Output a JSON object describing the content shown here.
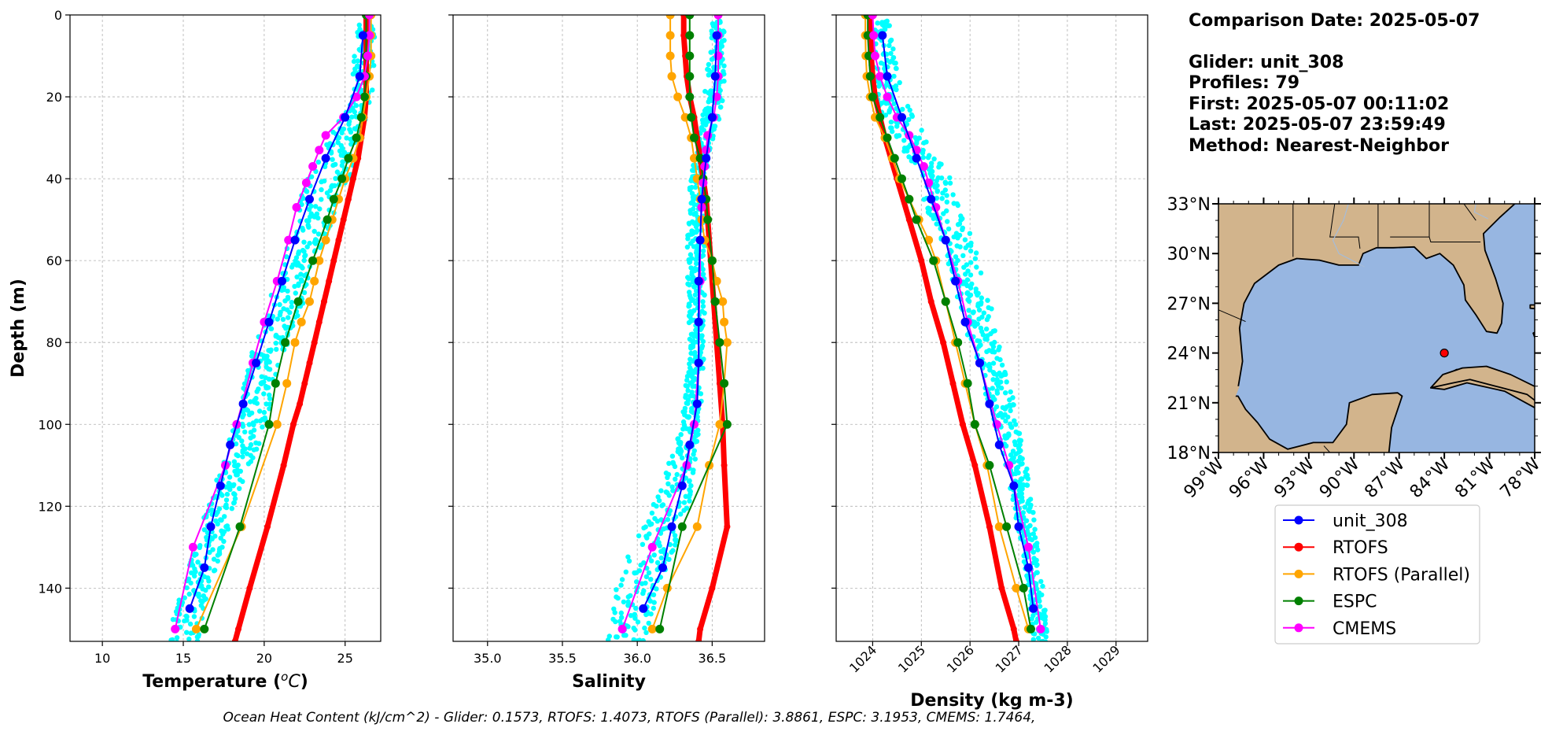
{
  "info": {
    "comparison_date": "Comparison Date: 2025-05-07",
    "glider": "Glider: unit_308",
    "profiles": "Profiles: 79",
    "first": "First: 2025-05-07 00:11:02",
    "last": "Last: 2025-05-07 23:59:49",
    "method": "Method: Nearest-Neighbor"
  },
  "footer": "Ocean Heat Content (kJ/cm^2) - Glider: 0.1573,  RTOFS: 1.4073,  RTOFS (Parallel): 3.8861,  ESPC: 3.1953,  CMEMS: 1.7464,",
  "colors": {
    "glider_obs": "#00ffff",
    "unit_308": "#0000ff",
    "RTOFS": "#ff0000",
    "RTOFS_parallel": "#ffa500",
    "ESPC": "#008000",
    "CMEMS": "#ff00ff",
    "ocean": "#97b6e1",
    "land": "#d2b48c",
    "grid": "#b0b0b0"
  },
  "legend": [
    "unit_308",
    "RTOFS",
    "RTOFS (Parallel)",
    "ESPC",
    "CMEMS"
  ],
  "map": {
    "lat_ticks": [
      "33°N",
      "30°N",
      "27°N",
      "24°N",
      "21°N",
      "18°N"
    ],
    "lon_ticks": [
      "99°W",
      "96°W",
      "93°W",
      "90°W",
      "87°W",
      "84°W",
      "81°W",
      "78°W"
    ],
    "xlim": [
      -99,
      -78
    ],
    "ylim": [
      18,
      33
    ],
    "glider_location": {
      "lon": -84.0,
      "lat": 24.0
    },
    "ocean_color": "#97b6e1",
    "land_color": "#d2b48c"
  },
  "chart_data": [
    {
      "type": "line",
      "xlabel": "Temperature (°C)",
      "ylabel": "Depth (m)",
      "xlim": [
        8,
        27.2
      ],
      "ylim": [
        153,
        0
      ],
      "xticks": [
        10,
        15,
        20,
        25
      ],
      "yticks": [
        0,
        20,
        40,
        60,
        80,
        100,
        120,
        140
      ],
      "grid": true,
      "glider_scatter": {
        "depth": [
          0,
          20,
          40,
          60,
          80,
          100,
          120,
          140,
          153
        ],
        "min": [
          25.7,
          25.4,
          22.6,
          21.2,
          19.4,
          18.2,
          16.5,
          14.9,
          14.0
        ],
        "max": [
          26.9,
          26.7,
          25.3,
          23.3,
          21.5,
          20.1,
          18.2,
          16.7,
          15.9
        ]
      },
      "series": [
        {
          "name": "unit_308",
          "depth": [
            5,
            15,
            25,
            35,
            45,
            55,
            65,
            75,
            85,
            95,
            105,
            115,
            125,
            135,
            145
          ],
          "values": [
            26.1,
            25.9,
            25.0,
            23.8,
            22.8,
            21.9,
            21.1,
            20.3,
            19.5,
            18.7,
            17.9,
            17.3,
            16.7,
            16.3,
            15.4
          ]
        },
        {
          "name": "RTOFS",
          "depth": [
            0,
            5,
            10,
            15,
            20,
            25,
            30,
            35,
            40,
            45,
            50,
            55,
            60,
            65,
            70,
            75,
            80,
            85,
            90,
            95,
            100,
            110,
            125,
            140,
            150,
            153
          ],
          "values": [
            26.3,
            26.3,
            26.3,
            26.3,
            26.3,
            26.2,
            26.0,
            25.8,
            25.5,
            25.2,
            24.9,
            24.6,
            24.3,
            24.0,
            23.7,
            23.4,
            23.1,
            22.8,
            22.5,
            22.2,
            21.8,
            21.2,
            20.2,
            19.1,
            18.4,
            18.2
          ]
        },
        {
          "name": "RTOFS (Parallel)",
          "depth": [
            0,
            5,
            10,
            15,
            20,
            25,
            30,
            35,
            40,
            45,
            50,
            55,
            60,
            65,
            70,
            75,
            80,
            90,
            100,
            125,
            150
          ],
          "values": [
            26.6,
            26.6,
            26.6,
            26.5,
            26.3,
            26.1,
            25.9,
            25.5,
            25.0,
            24.6,
            24.2,
            23.8,
            23.4,
            23.1,
            22.8,
            22.3,
            21.9,
            21.4,
            20.8,
            18.6,
            15.8
          ]
        },
        {
          "name": "ESPC",
          "depth": [
            0,
            5,
            10,
            15,
            20,
            25,
            30,
            35,
            40,
            45,
            50,
            60,
            70,
            80,
            90,
            100,
            125,
            150
          ],
          "values": [
            26.3,
            26.3,
            26.3,
            26.3,
            26.2,
            26.0,
            25.7,
            25.2,
            24.8,
            24.3,
            23.9,
            23.0,
            22.1,
            21.3,
            20.7,
            20.3,
            18.5,
            16.3
          ]
        },
        {
          "name": "CMEMS",
          "depth": [
            0,
            5,
            10,
            15,
            20,
            25,
            29.4,
            33,
            37,
            41,
            47,
            55,
            65,
            75,
            85,
            100,
            110,
            130,
            150
          ],
          "values": [
            26.5,
            26.5,
            26.4,
            26.2,
            25.7,
            24.9,
            23.8,
            23.4,
            23.0,
            22.6,
            22.0,
            21.5,
            20.8,
            20.0,
            19.3,
            18.3,
            17.6,
            15.6,
            14.5
          ]
        }
      ]
    },
    {
      "type": "line",
      "xlabel": "Salinity",
      "ylabel": "",
      "xlim": [
        34.77,
        36.85
      ],
      "ylim": [
        153,
        0
      ],
      "xticks": [
        35.0,
        35.5,
        36.0,
        36.5
      ],
      "yticks": [
        0,
        20,
        40,
        60,
        80,
        100,
        120,
        140
      ],
      "grid": true,
      "glider_scatter": {
        "depth": [
          0,
          20,
          40,
          60,
          80,
          100,
          120,
          130,
          140,
          153
        ],
        "min": [
          36.5,
          36.45,
          36.35,
          36.33,
          36.35,
          36.3,
          36.1,
          35.95,
          35.85,
          35.8
        ],
        "max": [
          36.58,
          36.58,
          36.45,
          36.45,
          36.45,
          36.42,
          36.35,
          36.25,
          36.15,
          36.05
        ]
      },
      "series": [
        {
          "name": "unit_308",
          "depth": [
            5,
            15,
            25,
            35,
            45,
            55,
            65,
            75,
            85,
            95,
            105,
            115,
            125,
            135,
            145
          ],
          "values": [
            36.53,
            36.52,
            36.5,
            36.46,
            36.43,
            36.42,
            36.41,
            36.41,
            36.41,
            36.4,
            36.35,
            36.3,
            36.23,
            36.17,
            36.04
          ]
        },
        {
          "name": "RTOFS",
          "depth": [
            0,
            5,
            10,
            15,
            20,
            25,
            30,
            35,
            40,
            45,
            50,
            60,
            70,
            80,
            90,
            100,
            110,
            125,
            140,
            150,
            153
          ],
          "values": [
            36.31,
            36.31,
            36.32,
            36.33,
            36.35,
            36.38,
            36.4,
            36.42,
            36.44,
            36.46,
            36.47,
            36.49,
            36.51,
            36.53,
            36.55,
            36.57,
            36.58,
            36.6,
            36.5,
            36.42,
            36.41
          ]
        },
        {
          "name": "RTOFS (Parallel)",
          "depth": [
            0,
            5,
            10,
            15,
            20,
            25,
            30,
            35,
            40,
            45,
            50,
            55,
            60,
            65,
            70,
            75,
            80,
            90,
            100,
            110,
            125,
            140,
            150
          ],
          "values": [
            36.22,
            36.22,
            36.22,
            36.23,
            36.27,
            36.32,
            36.36,
            36.38,
            36.4,
            36.42,
            36.43,
            36.45,
            36.5,
            36.53,
            36.57,
            36.58,
            36.6,
            36.58,
            36.55,
            36.48,
            36.4,
            36.2,
            36.1
          ]
        },
        {
          "name": "ESPC",
          "depth": [
            0,
            5,
            10,
            15,
            20,
            25,
            30,
            35,
            40,
            45,
            50,
            60,
            70,
            80,
            90,
            100,
            125,
            150
          ],
          "values": [
            36.35,
            36.35,
            36.35,
            36.35,
            36.35,
            36.36,
            36.38,
            36.42,
            36.44,
            36.46,
            36.47,
            36.5,
            36.52,
            36.55,
            36.58,
            36.6,
            36.3,
            36.15
          ]
        },
        {
          "name": "CMEMS",
          "depth": [
            0,
            5,
            10,
            15,
            20,
            25,
            29.4,
            33,
            37,
            41,
            47,
            55,
            65,
            75,
            85,
            100,
            110,
            130,
            150
          ],
          "values": [
            36.54,
            36.54,
            36.54,
            36.54,
            36.53,
            36.51,
            36.47,
            36.46,
            36.45,
            36.44,
            36.43,
            36.42,
            36.42,
            36.41,
            36.41,
            36.38,
            36.33,
            36.1,
            35.9
          ]
        }
      ]
    },
    {
      "type": "line",
      "xlabel": "Density (kg m-3)",
      "ylabel": "",
      "xlim": [
        1023.25,
        1029.65
      ],
      "ylim": [
        153,
        0
      ],
      "xticks": [
        1024,
        1025,
        1026,
        1027,
        1028,
        1029
      ],
      "yticks": [
        0,
        20,
        40,
        60,
        80,
        100,
        120,
        140
      ],
      "grid": true,
      "glider_scatter": {
        "depth": [
          0,
          20,
          40,
          60,
          80,
          100,
          120,
          140,
          153
        ],
        "min": [
          1023.9,
          1024.0,
          1024.9,
          1025.5,
          1026.0,
          1026.5,
          1026.9,
          1027.2,
          1027.3
        ],
        "max": [
          1024.3,
          1024.6,
          1025.6,
          1026.2,
          1026.6,
          1027.0,
          1027.3,
          1027.5,
          1027.6
        ]
      },
      "series": [
        {
          "name": "unit_308",
          "depth": [
            5,
            15,
            25,
            35,
            45,
            55,
            65,
            75,
            85,
            95,
            105,
            115,
            125,
            135,
            145
          ],
          "values": [
            1024.2,
            1024.3,
            1024.6,
            1024.9,
            1025.2,
            1025.5,
            1025.7,
            1025.9,
            1026.2,
            1026.4,
            1026.6,
            1026.9,
            1027.0,
            1027.2,
            1027.3
          ]
        },
        {
          "name": "RTOFS",
          "depth": [
            0,
            5,
            10,
            15,
            20,
            25,
            30,
            40,
            50,
            60,
            70,
            80,
            90,
            100,
            110,
            125,
            140,
            150,
            153
          ],
          "values": [
            1023.95,
            1023.96,
            1023.97,
            1024.0,
            1024.05,
            1024.15,
            1024.25,
            1024.5,
            1024.75,
            1025.0,
            1025.2,
            1025.45,
            1025.65,
            1025.85,
            1026.1,
            1026.4,
            1026.65,
            1026.9,
            1026.95
          ]
        },
        {
          "name": "RTOFS (Parallel)",
          "depth": [
            0,
            5,
            10,
            15,
            20,
            25,
            30,
            35,
            40,
            45,
            50,
            55,
            60,
            70,
            80,
            90,
            100,
            110,
            125,
            140,
            150
          ],
          "values": [
            1023.85,
            1023.85,
            1023.86,
            1023.88,
            1023.95,
            1024.05,
            1024.25,
            1024.4,
            1024.55,
            1024.75,
            1024.95,
            1025.15,
            1025.3,
            1025.5,
            1025.7,
            1025.9,
            1026.1,
            1026.35,
            1026.6,
            1026.95,
            1027.2
          ]
        },
        {
          "name": "ESPC",
          "depth": [
            0,
            5,
            10,
            15,
            20,
            25,
            30,
            35,
            40,
            45,
            50,
            60,
            70,
            80,
            90,
            100,
            110,
            125,
            140,
            150
          ],
          "values": [
            1023.9,
            1023.9,
            1023.92,
            1023.95,
            1024.0,
            1024.15,
            1024.3,
            1024.45,
            1024.6,
            1024.75,
            1024.9,
            1025.25,
            1025.5,
            1025.75,
            1025.95,
            1026.1,
            1026.4,
            1026.75,
            1027.1,
            1027.25
          ]
        },
        {
          "name": "CMEMS",
          "depth": [
            0,
            5,
            10,
            15,
            20,
            25,
            29.4,
            33,
            37,
            41,
            47,
            55,
            65,
            75,
            85,
            100,
            110,
            130,
            150
          ],
          "values": [
            1024.0,
            1024.02,
            1024.05,
            1024.15,
            1024.3,
            1024.5,
            1024.75,
            1024.9,
            1025.05,
            1025.15,
            1025.3,
            1025.5,
            1025.75,
            1025.95,
            1026.2,
            1026.55,
            1026.8,
            1027.2,
            1027.45
          ]
        }
      ]
    }
  ]
}
